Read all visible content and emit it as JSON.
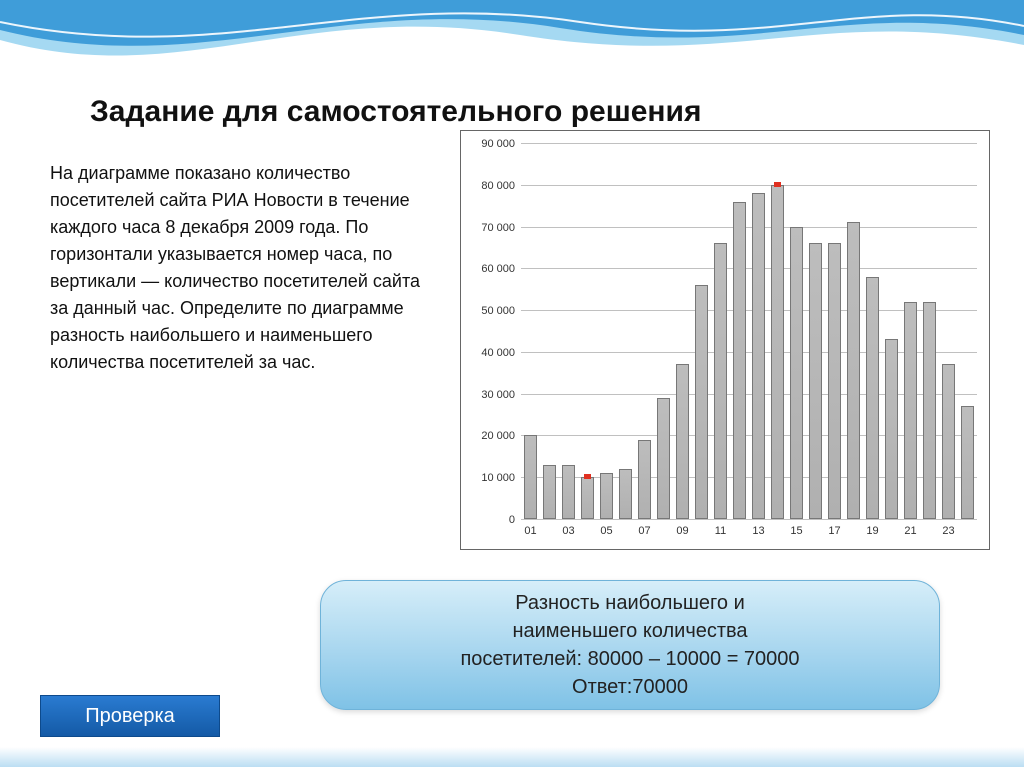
{
  "title": "Задание для самостоятельного решения",
  "description": "На диаграмме показано количество посетителей сайта РИА Новости в течение каждого часа 8 декабря 2009 года. По горизонтали указывается номер часа, по вертикали — количество посетителей сайта за данный час. Определите по диаграмме разность наибольшего и наименьшего количества посетителей за час.",
  "chart": {
    "type": "bar",
    "ylim": [
      0,
      90000
    ],
    "ytick_step": 10000,
    "yticks": [
      "0",
      "10 000",
      "20 000",
      "30 000",
      "40 000",
      "50 000",
      "60 000",
      "70 000",
      "80 000",
      "90 000"
    ],
    "xlabels_shown": [
      "01",
      "03",
      "05",
      "07",
      "09",
      "11",
      "13",
      "15",
      "17",
      "19",
      "21",
      "23"
    ],
    "categories": [
      "01",
      "02",
      "03",
      "04",
      "05",
      "06",
      "07",
      "08",
      "09",
      "10",
      "11",
      "12",
      "13",
      "14",
      "15",
      "16",
      "17",
      "18",
      "19",
      "20",
      "21",
      "22",
      "23",
      "24"
    ],
    "values": [
      20000,
      13000,
      13000,
      10000,
      11000,
      12000,
      19000,
      29000,
      37000,
      56000,
      66000,
      76000,
      78000,
      80000,
      70000,
      66000,
      66000,
      71000,
      58000,
      43000,
      52000,
      52000,
      37000,
      27000
    ],
    "bar_color": "#b0b0b0",
    "bar_border": "#777777",
    "grid_color": "#c0c0c0",
    "background_color": "#ffffff",
    "bar_width": 0.72,
    "axis_fontsize": 11,
    "markers": [
      {
        "index": 3,
        "color": "#e03020"
      },
      {
        "index": 13,
        "color": "#e03020"
      }
    ]
  },
  "answer": {
    "line1": "Разность наибольшего и",
    "line2": "наименьшего количества",
    "line3": "посетителей: 80000 – 10000 = 70000",
    "line4": "Ответ:70000"
  },
  "check_button": "Проверка",
  "colors": {
    "wave1": "#8ed0ef",
    "wave2": "#1e88d0",
    "bubble_top": "#d6eef9",
    "bubble_bottom": "#7fc2e6",
    "button_top": "#2a7bd1",
    "button_bottom": "#145aa6"
  }
}
